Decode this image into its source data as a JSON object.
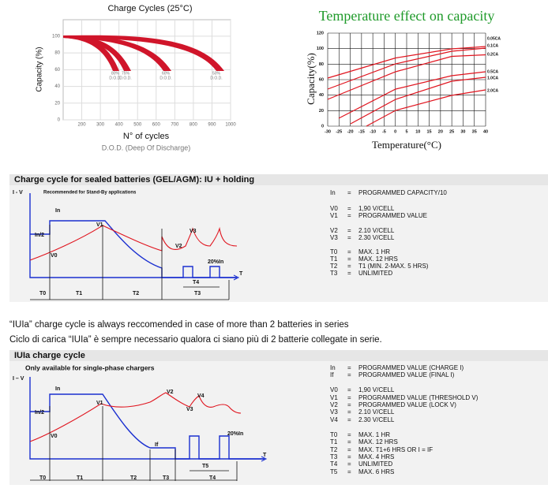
{
  "charge_cycles": {
    "title": "Charge Cycles (25°C)",
    "y_label": "Capacity (%)",
    "x_label": "N° of cycles",
    "caption": "D.O.D. (Deep Of Discharge)",
    "xlim": [
      100,
      1000
    ],
    "xticks": [
      200,
      300,
      400,
      500,
      600,
      700,
      800,
      900,
      1000
    ],
    "ylim": [
      0,
      115
    ],
    "yticks": [
      0,
      20,
      40,
      60,
      80,
      100
    ],
    "dod_labels": [
      [
        "80%",
        "D.O.D."
      ],
      [
        "75%",
        "D.O.D."
      ],
      [
        "60%",
        "D.O.D."
      ],
      [
        "50%",
        "D.O.D."
      ]
    ]
  },
  "temperature": {
    "title": "Temperature effect on capacity",
    "y_label": "Capacity(%)",
    "x_label": "Temperature(°C)",
    "xlim": [
      -30,
      40
    ],
    "xticks": [
      -30,
      -25,
      -20,
      -15,
      -10,
      -5,
      0,
      5,
      10,
      15,
      20,
      25,
      30,
      35,
      40
    ],
    "ylim": [
      0,
      120
    ],
    "yticks": [
      0,
      20,
      40,
      60,
      80,
      100,
      120
    ],
    "curve_labels": [
      "0.05CA",
      "0.1CA",
      "0.2CA",
      "0.5CA",
      "1.0CA",
      "2.0CA"
    ]
  },
  "section1": {
    "header": "Charge cycle for sealed batteries (GEL/AGM): IU + holding",
    "note": "Recommended for Stand-By applications",
    "diagram_labels": [
      "I - V",
      "In",
      "In/2",
      "V0",
      "V1",
      "V2",
      "V3",
      "20%In",
      "T",
      "T4",
      "T0",
      "T1",
      "T2",
      "T3"
    ],
    "table": [
      {
        "key": "In",
        "eq": "=",
        "value": "PROGRAMMED CAPACITY/10"
      },
      {
        "key": "V0",
        "eq": "=",
        "value": "1,90 V/CELL"
      },
      {
        "key": "V1",
        "eq": "=",
        "value": "PROGRAMMED VALUE"
      },
      {
        "key": "V2",
        "eq": "=",
        "value": "2.10 V/CELL"
      },
      {
        "key": "V3",
        "eq": "=",
        "value": "2.30 V/CELL"
      },
      {
        "key": "T0",
        "eq": "=",
        "value": "MAX. 1 HR"
      },
      {
        "key": "T1",
        "eq": "=",
        "value": "MAX. 12 HRS"
      },
      {
        "key": "T2",
        "eq": "=",
        "value": "T1 (MIN. 2-MAX. 5 HRS)"
      },
      {
        "key": "T3",
        "eq": "=",
        "value": "UNLIMITED"
      }
    ]
  },
  "notes": [
    "“IUIa” charge cycle is always reccomended in case of more than 2 batteries in series",
    "Ciclo di carica “IUIa” è sempre necessario qualora ci siano più di 2 batterie collegate in serie."
  ],
  "section2": {
    "header": "IUIa charge cycle",
    "note": "Only available for single-phase chargers",
    "diagram_labels": [
      "I – V",
      "In",
      "In/2",
      "V0",
      "V1",
      "V2",
      "V3",
      "V4",
      "If",
      "20%In",
      "T",
      "T5",
      "T0",
      "T1",
      "T2",
      "T3",
      "T4"
    ],
    "table": [
      {
        "key": "In",
        "eq": "=",
        "value": "PROGRAMMED VALUE (CHARGE I)"
      },
      {
        "key": "If",
        "eq": "=",
        "value": "PROGRAMMED VALUE (FINAL I)"
      },
      {
        "key": "V0",
        "eq": "=",
        "value": "1,90 V/CELL"
      },
      {
        "key": "V1",
        "eq": "=",
        "value": "PROGRAMMED VALUE (THRESHOLD V)"
      },
      {
        "key": "V2",
        "eq": "=",
        "value": "PROGRAMMED VALUE (LOCK V)"
      },
      {
        "key": "V3",
        "eq": "=",
        "value": "2.10 V/CELL"
      },
      {
        "key": "V4",
        "eq": "=",
        "value": "2.30 V/CELL"
      },
      {
        "key": "T0",
        "eq": "=",
        "value": "MAX. 1 HR"
      },
      {
        "key": "T1",
        "eq": "=",
        "value": "MAX. 12 HRS"
      },
      {
        "key": "T2",
        "eq": "=",
        "value": "MAX. T1+6 HRS OR I = IF"
      },
      {
        "key": "T3",
        "eq": "=",
        "value": "MAX. 4 HRS"
      },
      {
        "key": "T4",
        "eq": "=",
        "value": "UNLIMITED"
      },
      {
        "key": "T5",
        "eq": "=",
        "value": "MAX. 6 HRS"
      }
    ]
  }
}
